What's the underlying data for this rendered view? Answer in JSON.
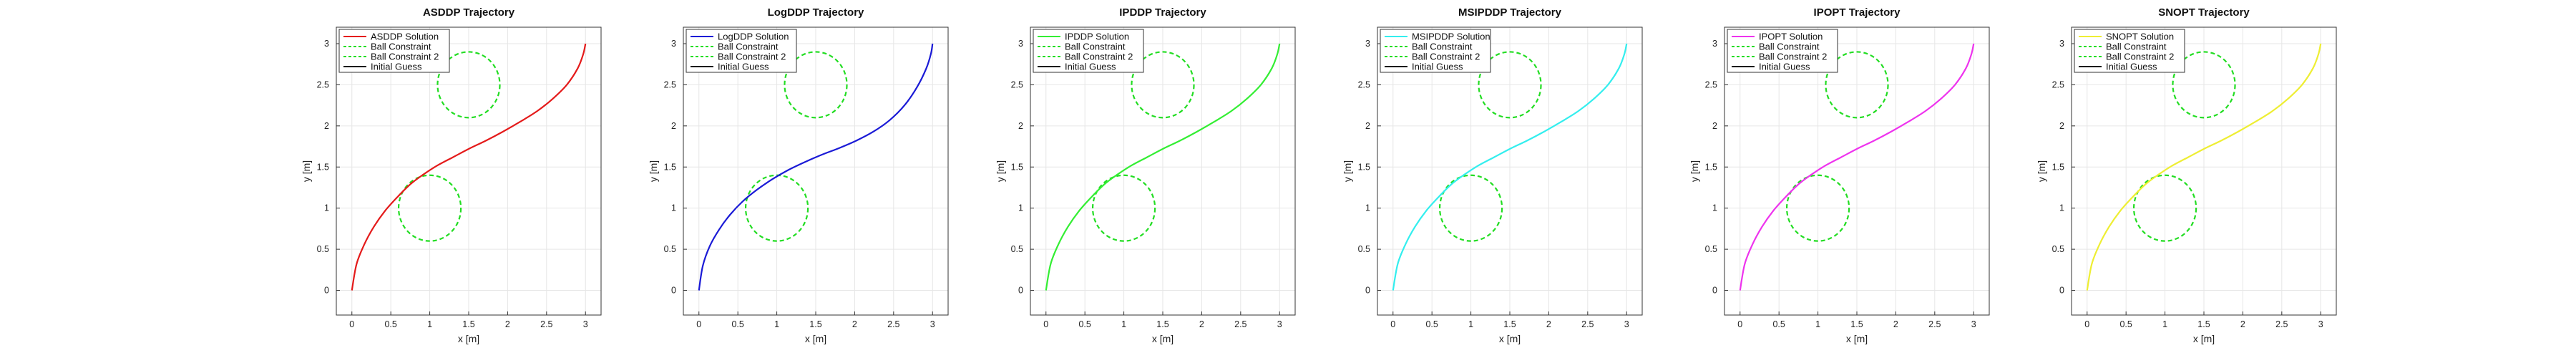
{
  "constraint_color": "#22dd22",
  "guess_color": "#111111",
  "chart_data": [
    {
      "type": "line",
      "title": "ASDDP Trajectory",
      "xlabel": "x [m]",
      "ylabel": "y [m]",
      "xlim": [
        -0.2,
        3.2
      ],
      "ylim": [
        -0.3,
        3.2
      ],
      "xticks": [
        "0",
        "0.5",
        "1",
        "1.5",
        "2",
        "2.5",
        "3"
      ],
      "yticks": [
        "0",
        "0.5",
        "1",
        "1.5",
        "2",
        "2.5",
        "3"
      ],
      "grid": true,
      "legend_position": "top-left",
      "series": [
        {
          "name": "ASDDP Solution",
          "color": "#e41a1a",
          "style": "solid",
          "x": [
            0.0,
            0.06,
            0.16,
            0.28,
            0.42,
            0.58,
            0.75,
            0.92,
            1.1,
            1.3,
            1.5,
            1.72,
            1.94,
            2.16,
            2.38,
            2.58,
            2.76,
            2.9,
            2.97,
            3.0
          ],
          "y": [
            0.0,
            0.32,
            0.56,
            0.77,
            0.96,
            1.13,
            1.29,
            1.41,
            1.52,
            1.62,
            1.72,
            1.82,
            1.93,
            2.05,
            2.18,
            2.33,
            2.5,
            2.7,
            2.87,
            3.0
          ]
        },
        {
          "name": "Ball Constraint",
          "style": "dashed",
          "center": [
            1.5,
            2.5
          ],
          "radius": 0.4
        },
        {
          "name": "Ball Constraint 2",
          "style": "dashed",
          "center": [
            1.0,
            1.0
          ],
          "radius": 0.4
        },
        {
          "name": "Initial Guess",
          "style": "solid",
          "x": [],
          "y": []
        }
      ]
    },
    {
      "type": "line",
      "title": "LogDDP Trajectory",
      "xlabel": "x [m]",
      "ylabel": "y [m]",
      "xlim": [
        -0.2,
        3.2
      ],
      "ylim": [
        -0.3,
        3.2
      ],
      "xticks": [
        "0",
        "0.5",
        "1",
        "1.5",
        "2",
        "2.5",
        "3"
      ],
      "yticks": [
        "0",
        "0.5",
        "1",
        "1.5",
        "2",
        "2.5",
        "3"
      ],
      "grid": true,
      "legend_position": "top-left",
      "series": [
        {
          "name": "LogDDP Solution",
          "color": "#1a1ad6",
          "style": "solid",
          "x": [
            0.0,
            0.05,
            0.14,
            0.26,
            0.4,
            0.56,
            0.74,
            0.94,
            1.14,
            1.36,
            1.58,
            1.8,
            2.02,
            2.24,
            2.45,
            2.64,
            2.8,
            2.92,
            2.98,
            3.0
          ],
          "y": [
            0.0,
            0.3,
            0.54,
            0.74,
            0.92,
            1.08,
            1.22,
            1.35,
            1.46,
            1.56,
            1.65,
            1.73,
            1.82,
            1.93,
            2.07,
            2.25,
            2.47,
            2.7,
            2.88,
            3.0
          ]
        },
        {
          "name": "Ball Constraint",
          "style": "dashed",
          "center": [
            1.5,
            2.5
          ],
          "radius": 0.4
        },
        {
          "name": "Ball Constraint 2",
          "style": "dashed",
          "center": [
            1.0,
            1.0
          ],
          "radius": 0.4
        },
        {
          "name": "Initial Guess",
          "style": "solid",
          "x": [],
          "y": []
        }
      ]
    },
    {
      "type": "line",
      "title": "IPDDP Trajectory",
      "xlabel": "x [m]",
      "ylabel": "y [m]",
      "xlim": [
        -0.2,
        3.2
      ],
      "ylim": [
        -0.3,
        3.2
      ],
      "xticks": [
        "0",
        "0.5",
        "1",
        "1.5",
        "2",
        "2.5",
        "3"
      ],
      "yticks": [
        "0",
        "0.5",
        "1",
        "1.5",
        "2",
        "2.5",
        "3"
      ],
      "grid": true,
      "legend_position": "top-left",
      "series": [
        {
          "name": "IPDDP Solution",
          "color": "#33ee33",
          "style": "solid",
          "x": [
            0.0,
            0.06,
            0.16,
            0.28,
            0.42,
            0.58,
            0.75,
            0.92,
            1.1,
            1.3,
            1.5,
            1.72,
            1.94,
            2.16,
            2.38,
            2.58,
            2.76,
            2.9,
            2.97,
            3.0
          ],
          "y": [
            0.0,
            0.32,
            0.56,
            0.77,
            0.96,
            1.13,
            1.29,
            1.41,
            1.52,
            1.62,
            1.72,
            1.82,
            1.93,
            2.05,
            2.18,
            2.33,
            2.5,
            2.7,
            2.87,
            3.0
          ]
        },
        {
          "name": "Ball Constraint",
          "style": "dashed",
          "center": [
            1.5,
            2.5
          ],
          "radius": 0.4
        },
        {
          "name": "Ball Constraint 2",
          "style": "dashed",
          "center": [
            1.0,
            1.0
          ],
          "radius": 0.4
        },
        {
          "name": "Initial Guess",
          "style": "solid",
          "x": [],
          "y": []
        }
      ]
    },
    {
      "type": "line",
      "title": "MSIPDDP Trajectory",
      "xlabel": "x [m]",
      "ylabel": "y [m]",
      "xlim": [
        -0.2,
        3.2
      ],
      "ylim": [
        -0.3,
        3.2
      ],
      "xticks": [
        "0",
        "0.5",
        "1",
        "1.5",
        "2",
        "2.5",
        "3"
      ],
      "yticks": [
        "0",
        "0.5",
        "1",
        "1.5",
        "2",
        "2.5",
        "3"
      ],
      "grid": true,
      "legend_position": "top-left",
      "series": [
        {
          "name": "MSIPDDP Solution",
          "color": "#33eeee",
          "style": "solid",
          "x": [
            0.0,
            0.06,
            0.16,
            0.28,
            0.42,
            0.58,
            0.75,
            0.92,
            1.1,
            1.3,
            1.5,
            1.72,
            1.94,
            2.16,
            2.38,
            2.58,
            2.76,
            2.9,
            2.97,
            3.0
          ],
          "y": [
            0.0,
            0.32,
            0.56,
            0.77,
            0.96,
            1.13,
            1.29,
            1.41,
            1.52,
            1.62,
            1.72,
            1.82,
            1.93,
            2.05,
            2.18,
            2.33,
            2.5,
            2.7,
            2.87,
            3.0
          ]
        },
        {
          "name": "Ball Constraint",
          "style": "dashed",
          "center": [
            1.5,
            2.5
          ],
          "radius": 0.4
        },
        {
          "name": "Ball Constraint 2",
          "style": "dashed",
          "center": [
            1.0,
            1.0
          ],
          "radius": 0.4
        },
        {
          "name": "Initial Guess",
          "style": "solid",
          "x": [],
          "y": []
        }
      ]
    },
    {
      "type": "line",
      "title": "IPOPT Trajectory",
      "xlabel": "x [m]",
      "ylabel": "y [m]",
      "xlim": [
        -0.2,
        3.2
      ],
      "ylim": [
        -0.3,
        3.2
      ],
      "xticks": [
        "0",
        "0.5",
        "1",
        "1.5",
        "2",
        "2.5",
        "3"
      ],
      "yticks": [
        "0",
        "0.5",
        "1",
        "1.5",
        "2",
        "2.5",
        "3"
      ],
      "grid": true,
      "legend_position": "top-left",
      "series": [
        {
          "name": "IPOPT Solution",
          "color": "#ee33ee",
          "style": "solid",
          "x": [
            0.0,
            0.06,
            0.16,
            0.28,
            0.42,
            0.58,
            0.75,
            0.92,
            1.1,
            1.3,
            1.5,
            1.72,
            1.94,
            2.16,
            2.38,
            2.58,
            2.76,
            2.9,
            2.97,
            3.0
          ],
          "y": [
            0.0,
            0.32,
            0.56,
            0.77,
            0.96,
            1.13,
            1.29,
            1.41,
            1.52,
            1.62,
            1.72,
            1.82,
            1.93,
            2.05,
            2.18,
            2.33,
            2.5,
            2.7,
            2.87,
            3.0
          ]
        },
        {
          "name": "Ball Constraint",
          "style": "dashed",
          "center": [
            1.5,
            2.5
          ],
          "radius": 0.4
        },
        {
          "name": "Ball Constraint 2",
          "style": "dashed",
          "center": [
            1.0,
            1.0
          ],
          "radius": 0.4
        },
        {
          "name": "Initial Guess",
          "style": "solid",
          "x": [],
          "y": []
        }
      ]
    },
    {
      "type": "line",
      "title": "SNOPT Trajectory",
      "xlabel": "x [m]",
      "ylabel": "y [m]",
      "xlim": [
        -0.2,
        3.2
      ],
      "ylim": [
        -0.3,
        3.2
      ],
      "xticks": [
        "0",
        "0.5",
        "1",
        "1.5",
        "2",
        "2.5",
        "3"
      ],
      "yticks": [
        "0",
        "0.5",
        "1",
        "1.5",
        "2",
        "2.5",
        "3"
      ],
      "grid": true,
      "legend_position": "top-left",
      "series": [
        {
          "name": "SNOPT Solution",
          "color": "#eeee33",
          "style": "solid",
          "x": [
            0.0,
            0.06,
            0.16,
            0.28,
            0.42,
            0.58,
            0.75,
            0.92,
            1.1,
            1.3,
            1.5,
            1.72,
            1.94,
            2.16,
            2.38,
            2.58,
            2.76,
            2.9,
            2.97,
            3.0
          ],
          "y": [
            0.0,
            0.32,
            0.56,
            0.77,
            0.96,
            1.13,
            1.29,
            1.41,
            1.52,
            1.62,
            1.72,
            1.82,
            1.93,
            2.05,
            2.18,
            2.33,
            2.5,
            2.7,
            2.87,
            3.0
          ]
        },
        {
          "name": "Ball Constraint",
          "style": "dashed",
          "center": [
            1.5,
            2.5
          ],
          "radius": 0.4
        },
        {
          "name": "Ball Constraint 2",
          "style": "dashed",
          "center": [
            1.0,
            1.0
          ],
          "radius": 0.4
        },
        {
          "name": "Initial Guess",
          "style": "solid",
          "x": [],
          "y": []
        }
      ]
    }
  ]
}
